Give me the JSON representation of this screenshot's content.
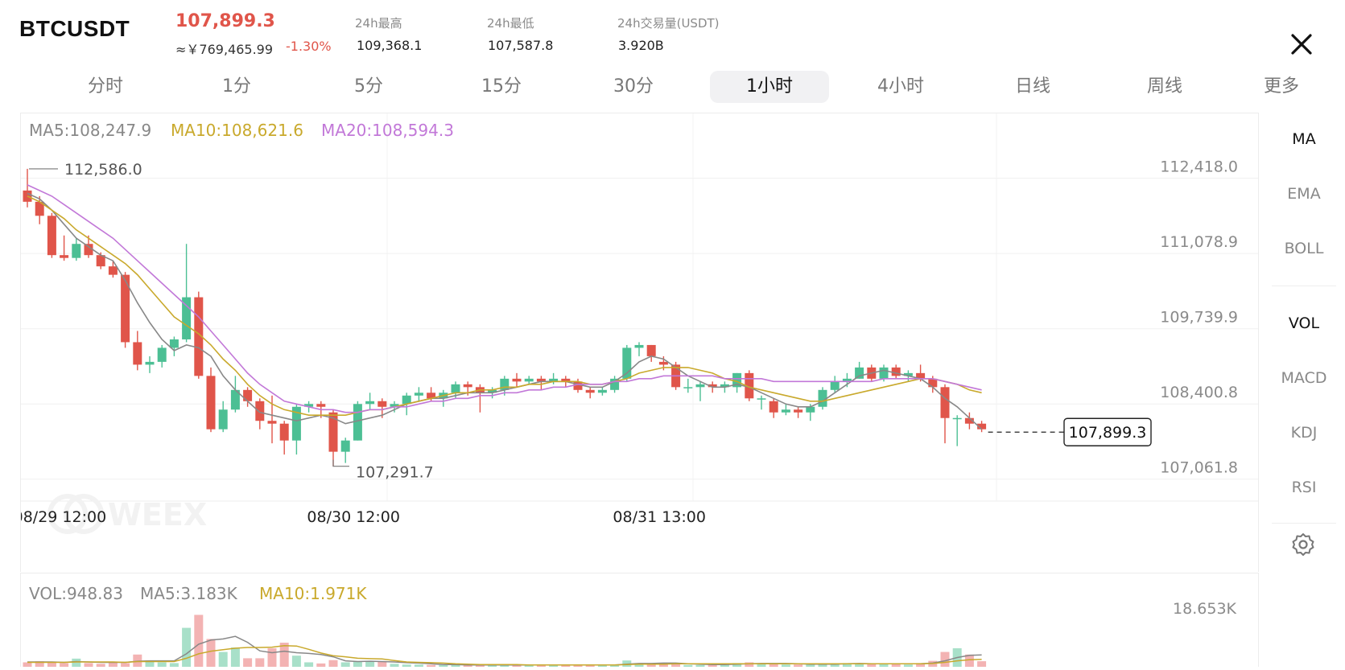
{
  "header": {
    "symbol": "BTCUSDT",
    "last_price": "107,899.3",
    "cny_price": "≈￥769,465.99",
    "change_pct": "-1.30%",
    "stats": [
      {
        "label": "24h最高",
        "value": "109,368.1"
      },
      {
        "label": "24h最低",
        "value": "107,587.8"
      },
      {
        "label": "24h交易量(USDT)",
        "value": "3.920B"
      }
    ]
  },
  "tabs": [
    {
      "label": "分时",
      "active": false
    },
    {
      "label": "1分",
      "active": false
    },
    {
      "label": "5分",
      "active": false
    },
    {
      "label": "15分",
      "active": false
    },
    {
      "label": "30分",
      "active": false
    },
    {
      "label": "1小时",
      "active": true
    },
    {
      "label": "4小时",
      "active": false
    },
    {
      "label": "日线",
      "active": false
    },
    {
      "label": "周线",
      "active": false
    },
    {
      "label": "更多",
      "active": false
    }
  ],
  "indicators": {
    "main": [
      "MA",
      "EMA",
      "BOLL"
    ],
    "sub": [
      "VOL",
      "MACD",
      "KDJ",
      "RSI"
    ],
    "active": [
      "MA",
      "VOL"
    ],
    "settings_icon": "gear-icon"
  },
  "close_icon": "close-icon",
  "watermark": "WEEX",
  "colors": {
    "up": "#4cbf94",
    "down": "#e0554a",
    "ma5": "#888888",
    "ma10": "#c9a92c",
    "ma20": "#c278d8",
    "vol_up": "#a8e0c9",
    "vol_down": "#f3b3b3"
  },
  "chart_data": {
    "type": "candlestick",
    "interval": "1小时",
    "legend": {
      "ma5": "MA5:108,247.9",
      "ma10": "MA10:108,621.6",
      "ma20": "MA20:108,594.3"
    },
    "y_ticks": [
      "112,418.0",
      "111,078.9",
      "109,739.9",
      "108,400.8",
      "107,061.8"
    ],
    "y_tick_values": [
      112418.0,
      111078.9,
      109739.9,
      108400.8,
      107061.8
    ],
    "ylim": [
      106700,
      113000
    ],
    "x_ticks": [
      {
        "label": "08/29 12:00",
        "index": 2
      },
      {
        "label": "08/30 12:00",
        "index": 26
      },
      {
        "label": "08/31 13:00",
        "index": 51
      }
    ],
    "high_annotation": {
      "label": "112,586.0",
      "index": 0,
      "value": 112586.0
    },
    "low_annotation": {
      "label": "107,291.7",
      "index": 25,
      "value": 107291.7
    },
    "current_price_label": "107,899.3",
    "current_price": 107899.3,
    "candles": [
      [
        112200,
        112000,
        112586,
        111900
      ],
      [
        112000,
        111750,
        112100,
        111600
      ],
      [
        111750,
        111050,
        111800,
        111000
      ],
      [
        111050,
        111000,
        111400,
        110950
      ],
      [
        111000,
        111250,
        111350,
        110950
      ],
      [
        111250,
        111050,
        111400,
        111000
      ],
      [
        111050,
        110850,
        111100,
        110800
      ],
      [
        110850,
        110700,
        110950,
        110650
      ],
      [
        110700,
        109500,
        110750,
        109400
      ],
      [
        109500,
        109100,
        109700,
        109000
      ],
      [
        109100,
        109150,
        109250,
        108950
      ],
      [
        109150,
        109400,
        109450,
        109050
      ],
      [
        109400,
        109550,
        109600,
        109250
      ],
      [
        109550,
        110300,
        111250,
        109500
      ],
      [
        110300,
        108900,
        110400,
        108850
      ],
      [
        108900,
        107950,
        109050,
        107900
      ],
      [
        107950,
        108300,
        108450,
        107900
      ],
      [
        108300,
        108650,
        108900,
        108250
      ],
      [
        108650,
        108450,
        108700,
        108350
      ],
      [
        108450,
        108100,
        108500,
        107950
      ],
      [
        108100,
        108050,
        108550,
        107700
      ],
      [
        108050,
        107750,
        108100,
        107500
      ],
      [
        107750,
        108350,
        108400,
        107500
      ],
      [
        108350,
        108400,
        108450,
        108250
      ],
      [
        108400,
        108350,
        108450,
        108150
      ],
      [
        108250,
        107550,
        108300,
        107291.7
      ],
      [
        107550,
        107750,
        107800,
        107350
      ],
      [
        107750,
        108400,
        108450,
        107750
      ],
      [
        108400,
        108450,
        108600,
        108300
      ],
      [
        108450,
        108350,
        108500,
        108150
      ],
      [
        108350,
        108400,
        108450,
        108250
      ],
      [
        108400,
        108550,
        108600,
        108200
      ],
      [
        108550,
        108600,
        108700,
        108450
      ],
      [
        108600,
        108500,
        108700,
        108450
      ],
      [
        108500,
        108600,
        108650,
        108350
      ],
      [
        108600,
        108750,
        108800,
        108500
      ],
      [
        108750,
        108700,
        108800,
        108550
      ],
      [
        108700,
        108600,
        108750,
        108250
      ],
      [
        108600,
        108650,
        108700,
        108500
      ],
      [
        108650,
        108850,
        108900,
        108550
      ],
      [
        108850,
        108800,
        108950,
        108700
      ],
      [
        108800,
        108850,
        108900,
        108750
      ],
      [
        108850,
        108800,
        108900,
        108650
      ],
      [
        108800,
        108850,
        108950,
        108750
      ],
      [
        108850,
        108800,
        108900,
        108700
      ],
      [
        108800,
        108650,
        108850,
        108600
      ],
      [
        108650,
        108600,
        108700,
        108500
      ],
      [
        108600,
        108650,
        108700,
        108550
      ],
      [
        108650,
        108850,
        108900,
        108600
      ],
      [
        108850,
        109400,
        109450,
        108800
      ],
      [
        109400,
        109450,
        109500,
        109250
      ],
      [
        109450,
        109250,
        109450,
        109150
      ],
      [
        109150,
        109100,
        109250,
        109000
      ],
      [
        109100,
        108700,
        109150,
        108650
      ],
      [
        108700,
        108700,
        108850,
        108600
      ],
      [
        108700,
        108750,
        108800,
        108450
      ],
      [
        108750,
        108700,
        108800,
        108600
      ],
      [
        108700,
        108750,
        108800,
        108600
      ],
      [
        108700,
        108950,
        108950,
        108600
      ],
      [
        108950,
        108500,
        109000,
        108450
      ],
      [
        108500,
        108500,
        108550,
        108300
      ],
      [
        108450,
        108250,
        108500,
        108150
      ],
      [
        108250,
        108300,
        108400,
        108200
      ],
      [
        108300,
        108250,
        108350,
        108150
      ],
      [
        108250,
        108350,
        108400,
        108100
      ],
      [
        108350,
        108650,
        108700,
        108300
      ],
      [
        108650,
        108800,
        108900,
        108600
      ],
      [
        108800,
        108850,
        108950,
        108700
      ],
      [
        108850,
        109050,
        109150,
        108850
      ],
      [
        109050,
        108850,
        109100,
        108800
      ],
      [
        108850,
        109050,
        109100,
        108800
      ],
      [
        109050,
        108900,
        109100,
        108850
      ],
      [
        108900,
        108950,
        109000,
        108800
      ],
      [
        108950,
        108850,
        109100,
        108800
      ],
      [
        108850,
        108700,
        108900,
        108600
      ],
      [
        108700,
        108150,
        108750,
        107700
      ],
      [
        108150,
        108150,
        108200,
        107650
      ],
      [
        108150,
        108050,
        108250,
        107950
      ],
      [
        108050,
        107950,
        108100,
        107899.3
      ]
    ],
    "ma5": [
      112150,
      112050,
      111850,
      111600,
      111350,
      111200,
      111050,
      110950,
      110600,
      110200,
      109850,
      109550,
      109350,
      109450,
      109400,
      109250,
      108900,
      108650,
      108450,
      108250,
      108200,
      108150,
      108100,
      108150,
      108200,
      108150,
      108050,
      108100,
      108150,
      108200,
      108300,
      108400,
      108450,
      108500,
      108500,
      108550,
      108600,
      108600,
      108600,
      108650,
      108700,
      108750,
      108800,
      108800,
      108800,
      108750,
      108700,
      108700,
      108800,
      108950,
      109150,
      109250,
      109200,
      109050,
      108900,
      108800,
      108700,
      108700,
      108750,
      108700,
      108600,
      108500,
      108400,
      108350,
      108350,
      108450,
      108600,
      108750,
      108900,
      108950,
      109000,
      108950,
      108900,
      108850,
      108700,
      108500,
      108350,
      108150,
      107950
    ],
    "ma10": [
      112100,
      112000,
      111850,
      111700,
      111500,
      111350,
      111200,
      111050,
      110900,
      110700,
      110450,
      110200,
      109950,
      109800,
      109650,
      109450,
      109200,
      109000,
      108750,
      108550,
      108400,
      108300,
      108250,
      108200,
      108200,
      108200,
      108200,
      108250,
      108300,
      108300,
      108350,
      108400,
      108450,
      108500,
      108550,
      108600,
      108600,
      108650,
      108650,
      108700,
      108700,
      108750,
      108750,
      108800,
      108800,
      108800,
      108750,
      108750,
      108800,
      108850,
      108950,
      109000,
      109050,
      109050,
      109050,
      109000,
      108950,
      108850,
      108800,
      108700,
      108650,
      108600,
      108550,
      108500,
      108450,
      108450,
      108500,
      108550,
      108600,
      108650,
      108700,
      108750,
      108800,
      108850,
      108850,
      108800,
      108750,
      108650,
      108600
    ],
    "ma20": [
      112300,
      112200,
      112100,
      111950,
      111800,
      111650,
      111500,
      111350,
      111150,
      110950,
      110750,
      110550,
      110350,
      110150,
      109950,
      109700,
      109450,
      109200,
      108950,
      108750,
      108600,
      108450,
      108400,
      108350,
      108300,
      108300,
      108250,
      108250,
      108300,
      108300,
      108350,
      108350,
      108400,
      108450,
      108450,
      108500,
      108500,
      108550,
      108550,
      108600,
      108600,
      108650,
      108650,
      108700,
      108700,
      108750,
      108750,
      108750,
      108800,
      108800,
      108850,
      108850,
      108900,
      108900,
      108900,
      108900,
      108900,
      108850,
      108850,
      108850,
      108850,
      108800,
      108800,
      108800,
      108800,
      108800,
      108800,
      108800,
      108800,
      108800,
      108850,
      108850,
      108850,
      108850,
      108850,
      108800,
      108750,
      108700,
      108650
    ]
  },
  "volume": {
    "legend": {
      "vol": "VOL:948.83",
      "ma5": "MA5:3.183K",
      "ma10": "MA10:1.971K"
    },
    "y_tick": "18.653K",
    "ymax": 18.653,
    "values": [
      1.2,
      1.5,
      1.1,
      1.0,
      2.2,
      1.0,
      0.8,
      1.2,
      1.0,
      3.3,
      1.6,
      1.2,
      1.0,
      10.5,
      14.0,
      7.5,
      4.0,
      5.2,
      2.3,
      2.3,
      5.0,
      6.5,
      3.0,
      1.2,
      0.9,
      1.8,
      1.2,
      1.3,
      1.4,
      1.3,
      0.8,
      0.6,
      0.6,
      0.5,
      0.5,
      0.6,
      0.5,
      0.4,
      0.4,
      0.7,
      0.6,
      0.4,
      0.5,
      0.5,
      0.4,
      0.4,
      0.5,
      0.5,
      0.6,
      1.7,
      1.0,
      0.8,
      0.7,
      0.8,
      0.5,
      0.5,
      0.6,
      0.6,
      1.0,
      1.2,
      0.9,
      0.8,
      0.6,
      0.6,
      0.7,
      0.8,
      0.9,
      1.0,
      0.8,
      0.7,
      0.8,
      0.8,
      0.6,
      1.0,
      1.6,
      4.0,
      5.0,
      3.3,
      1.5
    ],
    "ma5": [
      1.3,
      1.3,
      1.3,
      1.2,
      1.4,
      1.3,
      1.2,
      1.2,
      1.2,
      1.5,
      1.6,
      1.6,
      1.6,
      3.5,
      6.1,
      7.2,
      7.5,
      8.2,
      6.6,
      4.3,
      3.8,
      4.2,
      3.8,
      3.6,
      3.3,
      2.7,
      1.6,
      1.4,
      1.5,
      1.4,
      1.3,
      1.1,
      1.0,
      0.8,
      0.6,
      0.6,
      0.5,
      0.5,
      0.5,
      0.5,
      0.5,
      0.5,
      0.5,
      0.5,
      0.5,
      0.5,
      0.5,
      0.5,
      0.5,
      0.7,
      0.9,
      0.9,
      1.0,
      1.0,
      0.8,
      0.7,
      0.6,
      0.6,
      0.7,
      0.8,
      0.9,
      0.9,
      0.9,
      0.8,
      0.7,
      0.7,
      0.7,
      0.8,
      0.9,
      0.8,
      0.8,
      0.8,
      0.8,
      0.8,
      1.0,
      1.6,
      2.5,
      3.1,
      3.2
    ],
    "ma10": [
      1.2,
      1.2,
      1.2,
      1.2,
      1.3,
      1.3,
      1.3,
      1.3,
      1.2,
      1.4,
      1.4,
      1.4,
      1.4,
      2.3,
      3.5,
      4.2,
      4.6,
      5.0,
      5.2,
      5.2,
      5.3,
      5.7,
      5.6,
      4.7,
      3.7,
      3.0,
      2.7,
      2.3,
      2.2,
      2.1,
      1.7,
      1.3,
      1.2,
      1.1,
      1.0,
      0.8,
      0.7,
      0.6,
      0.6,
      0.6,
      0.6,
      0.5,
      0.5,
      0.5,
      0.5,
      0.5,
      0.5,
      0.5,
      0.5,
      0.6,
      0.7,
      0.7,
      0.7,
      0.8,
      0.8,
      0.8,
      0.8,
      0.8,
      0.8,
      0.8,
      0.8,
      0.8,
      0.8,
      0.8,
      0.8,
      0.8,
      0.8,
      0.8,
      0.8,
      0.8,
      0.8,
      0.8,
      0.8,
      0.8,
      0.9,
      1.2,
      1.6,
      1.9,
      2.0
    ]
  }
}
